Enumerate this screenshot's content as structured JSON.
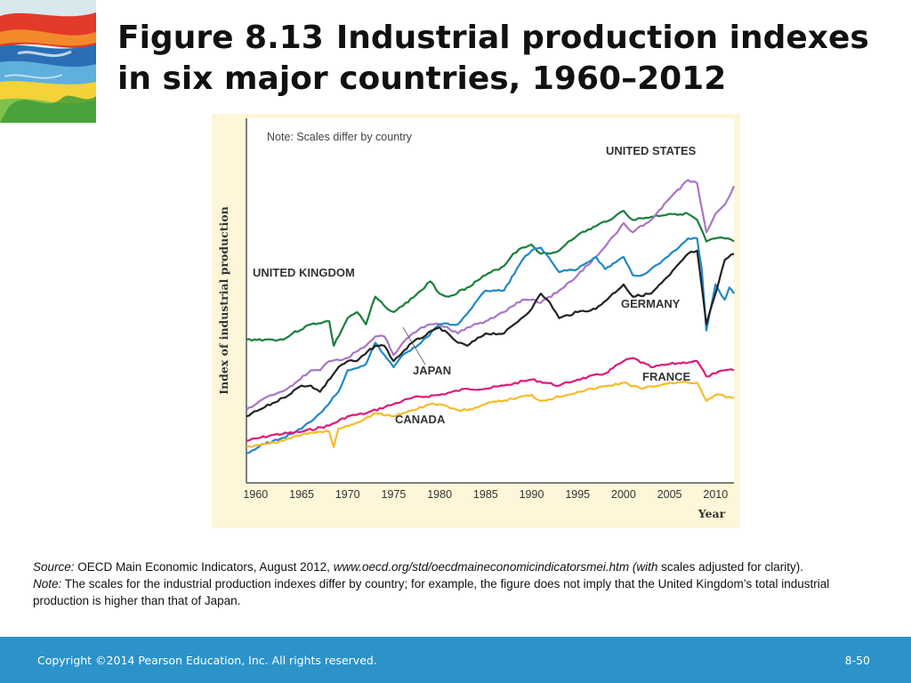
{
  "title": {
    "figure_label": "Figure 8.13",
    "text": "Industrial production indexes in six major countries, 1960–2012"
  },
  "chart_data": {
    "type": "line",
    "ylabel": "Index of industrial production",
    "xlabel": "Year",
    "note": "Note: Scales differ by country",
    "xlim": [
      1959,
      2012
    ],
    "ylim": [
      0,
      100
    ],
    "y_units": "relative position (scales differ by country; no y tick labels)",
    "x_ticks": [
      1960,
      1965,
      1970,
      1975,
      1980,
      1985,
      1990,
      1995,
      2000,
      2005,
      2010
    ],
    "series": [
      {
        "name": "UNITED KINGDOM",
        "color": "#1a7f3a",
        "x": [
          1959,
          1961,
          1963,
          1964,
          1966,
          1968,
          1968.5,
          1970,
          1971,
          1972,
          1973,
          1974,
          1975,
          1976,
          1978,
          1979,
          1980,
          1981,
          1983,
          1985,
          1987,
          1988,
          1989,
          1990,
          1991,
          1992,
          1993,
          1994,
          1995,
          1997,
          1999,
          2000,
          2001,
          2003,
          2005,
          2007,
          2008,
          2009,
          2010,
          2011,
          2012
        ],
        "y": [
          38,
          38,
          38,
          40,
          43,
          44,
          36,
          45,
          47,
          43,
          52,
          49,
          47,
          49,
          54,
          57,
          53,
          52,
          55,
          59,
          62,
          66,
          68,
          69,
          66,
          66,
          67,
          70,
          72,
          75,
          78,
          80,
          77,
          78,
          79,
          79,
          77,
          70,
          71,
          71,
          70
        ]
      },
      {
        "name": "UNITED STATES",
        "color": "#a876c4",
        "x": [
          1959,
          1961,
          1962,
          1964,
          1966,
          1967,
          1968,
          1970,
          1972,
          1973,
          1974,
          1975,
          1976,
          1978,
          1979,
          1980,
          1982,
          1983,
          1985,
          1987,
          1989,
          1990,
          1991,
          1993,
          1995,
          1997,
          1999,
          2000,
          2001,
          2003,
          2005,
          2007,
          2008,
          2009,
          2010,
          2011,
          2012
        ],
        "y": [
          15,
          19,
          20,
          23,
          28,
          28,
          31,
          32,
          36,
          39,
          39,
          33,
          37,
          42,
          43,
          43,
          40,
          42,
          44,
          47,
          51,
          51,
          50,
          54,
          59,
          65,
          72,
          76,
          73,
          77,
          84,
          90,
          89,
          73,
          79,
          82,
          88
        ]
      },
      {
        "name": "JAPAN",
        "color": "#1e88c8",
        "x": [
          1959,
          1961,
          1963,
          1965,
          1967,
          1969,
          1970,
          1972,
          1973,
          1974,
          1975,
          1976,
          1978,
          1980,
          1982,
          1985,
          1987,
          1989,
          1990,
          1991,
          1993,
          1995,
          1997,
          1998,
          2000,
          2001,
          2002,
          2004,
          2006,
          2007,
          2008,
          2008.5,
          2009,
          2010,
          2011,
          2011.5,
          2012
        ],
        "y": [
          1,
          4,
          6,
          9,
          14,
          21,
          28,
          30,
          37,
          33,
          29,
          33,
          37,
          43,
          43,
          54,
          54,
          64,
          67,
          68,
          60,
          61,
          65,
          61,
          65,
          59,
          59,
          63,
          68,
          71,
          71,
          61,
          41,
          56,
          51,
          55,
          53
        ]
      },
      {
        "name": "GERMANY",
        "color": "#222222",
        "x": [
          1959,
          1961,
          1963,
          1965,
          1966,
          1967,
          1969,
          1970,
          1971,
          1973,
          1974,
          1975,
          1977,
          1980,
          1982,
          1983,
          1985,
          1987,
          1990,
          1991,
          1992,
          1993,
          1995,
          1997,
          2000,
          2001,
          2003,
          2005,
          2007,
          2008,
          2009,
          2010,
          2011,
          2012
        ],
        "y": [
          13,
          16,
          19,
          23,
          23,
          21,
          29,
          31,
          31,
          36,
          36,
          31,
          37,
          42,
          37,
          36,
          40,
          40,
          48,
          53,
          50,
          45,
          47,
          48,
          56,
          52,
          53,
          59,
          66,
          67,
          43,
          53,
          64,
          66
        ]
      },
      {
        "name": "FRANCE",
        "color": "#e0197a",
        "x": [
          1959,
          1962,
          1965,
          1968,
          1970,
          1972,
          1975,
          1977,
          1980,
          1983,
          1985,
          1987,
          1990,
          1993,
          1995,
          1998,
          2000,
          2001,
          2003,
          2005,
          2008,
          2009,
          2010,
          2011,
          2012
        ],
        "y": [
          5,
          7,
          8,
          10,
          13,
          14,
          17,
          19,
          20,
          22,
          22,
          23,
          25,
          23,
          25,
          27,
          31,
          32,
          29,
          30,
          31,
          26,
          27,
          28,
          28
        ]
      },
      {
        "name": "CANADA",
        "color": "#f6bb2a",
        "x": [
          1959,
          1961,
          1963,
          1965,
          1967,
          1968,
          1968.5,
          1969,
          1971,
          1973,
          1975,
          1977,
          1979,
          1980,
          1982,
          1983,
          1985,
          1990,
          1991,
          1995,
          2000,
          2002,
          2005,
          2007,
          2008,
          2009,
          2010,
          2012
        ],
        "y": [
          3,
          4,
          5,
          7,
          8,
          8,
          3,
          9,
          11,
          14,
          13,
          15,
          17,
          17,
          15,
          15,
          17,
          20,
          18,
          21,
          24,
          22,
          24,
          24,
          24,
          18,
          20,
          19
        ]
      }
    ],
    "series_labels": [
      "UNITED STATES",
      "UNITED KINGDOM",
      "GERMANY",
      "JAPAN",
      "FRANCE",
      "CANADA"
    ],
    "grid": false,
    "legend": "direct labels on lines"
  },
  "notes": {
    "source_label": "Source:",
    "source_text": "OECD Main Economic Indicators, August 2012,",
    "source_url": "www.oecd.org/std/oecdmaineconomicindicatorsmei.htm",
    "source_with": "(with",
    "source_tail": "scales adjusted for clarity).",
    "note_label": "Note:",
    "note_text": "The scales for the industrial production indexes differ by country; for example, the figure does not imply that the United Kingdom’s total industrial production is higher than that of Japan."
  },
  "footer": {
    "copyright": "Copyright ©2014 Pearson Education, Inc. All rights reserved.",
    "page": "8-50"
  }
}
